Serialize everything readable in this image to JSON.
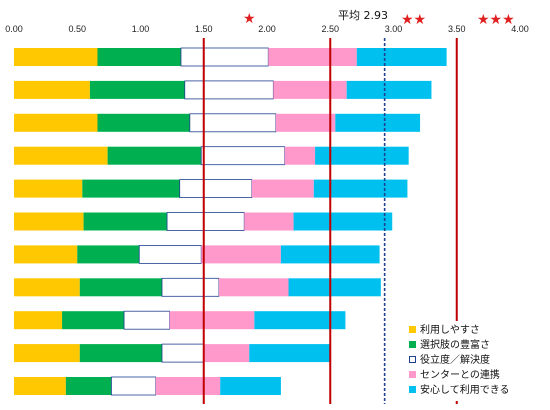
{
  "chart_data": {
    "type": "bar",
    "orientation": "horizontal",
    "stacked": true,
    "xlim": [
      0,
      4
    ],
    "ticks": [
      "0.00",
      "0.50",
      "1.00",
      "1.50",
      "2.00",
      "2.50",
      "3.00",
      "3.50",
      "4.00"
    ],
    "tick_values": [
      0,
      0.5,
      1,
      1.5,
      2,
      2.5,
      3,
      3.5,
      4
    ],
    "grid": false,
    "legend_position": "bottom-right",
    "series": [
      {
        "name": "利用しやすさ",
        "color": "#FFC800",
        "values": [
          0.66,
          0.6,
          0.66,
          0.74,
          0.54,
          0.55,
          0.5,
          0.52,
          0.38,
          0.52,
          0.41
        ]
      },
      {
        "name": "選択肢の豊富さ",
        "color": "#00B050",
        "values": [
          0.66,
          0.75,
          0.73,
          0.74,
          0.77,
          0.66,
          0.49,
          0.65,
          0.49,
          0.65,
          0.36
        ]
      },
      {
        "name": "役立度／解決度",
        "color": "#FFFFFF",
        "values": [
          0.69,
          0.7,
          0.68,
          0.66,
          0.57,
          0.61,
          0.49,
          0.45,
          0.36,
          0.33,
          0.35
        ]
      },
      {
        "name": "センターとの連携",
        "color": "#FF99CC",
        "values": [
          0.7,
          0.58,
          0.47,
          0.24,
          0.49,
          0.39,
          0.63,
          0.55,
          0.67,
          0.36,
          0.51
        ]
      },
      {
        "name": "安心して利用できる",
        "color": "#00C0F0",
        "values": [
          0.71,
          0.67,
          0.67,
          0.74,
          0.74,
          0.78,
          0.78,
          0.73,
          0.72,
          0.64,
          0.48
        ]
      }
    ],
    "reference_lines": [
      {
        "value": 1.5,
        "style": "solid",
        "color": "#C00000"
      },
      {
        "value": 2.5,
        "style": "solid",
        "color": "#C00000"
      },
      {
        "value": 2.93,
        "style": "dotted",
        "color": "#1F3F8F"
      },
      {
        "value": 3.5,
        "style": "solid",
        "color": "#C00000"
      }
    ],
    "annotations": {
      "average_label": "平均 2.93",
      "star_one": "★",
      "star_two": "★★",
      "star_three": "★★★"
    }
  }
}
